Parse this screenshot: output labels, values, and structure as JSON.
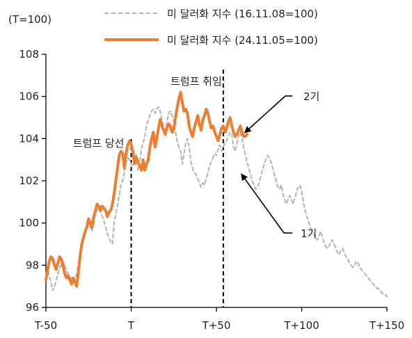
{
  "chart_data": {
    "type": "line",
    "unit_label": "(T=100)",
    "x_ticks": [
      {
        "value": -50,
        "label": "T-50"
      },
      {
        "value": 0,
        "label": "T"
      },
      {
        "value": 50,
        "label": "T+50"
      },
      {
        "value": 100,
        "label": "T+100"
      },
      {
        "value": 150,
        "label": "T+150"
      }
    ],
    "xlim": [
      -50,
      150
    ],
    "ylim": [
      96,
      108
    ],
    "y_ticks": [
      96,
      98,
      100,
      102,
      104,
      106,
      108
    ],
    "grid": false,
    "legend_position": "top-right",
    "series": [
      {
        "name": "미 달러화 지수 (16.11.08=100)",
        "style": "dashed",
        "color": "#b3b3b3",
        "x": [
          -50,
          -49,
          -48,
          -47,
          -46,
          -45,
          -44,
          -43,
          -42,
          -41,
          -40,
          -39,
          -38,
          -37,
          -36,
          -35,
          -34,
          -33,
          -32,
          -31,
          -30,
          -29,
          -28,
          -27,
          -26,
          -25,
          -24,
          -23,
          -22,
          -21,
          -20,
          -19,
          -18,
          -17,
          -16,
          -15,
          -14,
          -13,
          -12,
          -11,
          -10,
          -9,
          -8,
          -7,
          -6,
          -5,
          -4,
          -3,
          -2,
          -1,
          0,
          1,
          2,
          3,
          4,
          5,
          6,
          7,
          8,
          9,
          10,
          11,
          12,
          13,
          14,
          15,
          16,
          17,
          18,
          19,
          20,
          21,
          22,
          23,
          24,
          25,
          26,
          27,
          28,
          29,
          30,
          31,
          32,
          33,
          34,
          35,
          36,
          37,
          38,
          39,
          40,
          41,
          42,
          43,
          44,
          45,
          46,
          47,
          48,
          49,
          50,
          51,
          52,
          53,
          54,
          55,
          56,
          57,
          58,
          59,
          60,
          61,
          62,
          63,
          64,
          65,
          66,
          67,
          68,
          69,
          70,
          71,
          72,
          73,
          74,
          75,
          76,
          77,
          78,
          79,
          80,
          81,
          82,
          83,
          84,
          85,
          86,
          87,
          88,
          89,
          90,
          91,
          92,
          93,
          94,
          95,
          96,
          97,
          98,
          99,
          100,
          101,
          102,
          103,
          104,
          105,
          106,
          107,
          108,
          109,
          110,
          111,
          112,
          113,
          114,
          115,
          116,
          117,
          118,
          119,
          120,
          121,
          122,
          123,
          124,
          125,
          126,
          127,
          128,
          129,
          130,
          131,
          132,
          133,
          134,
          135,
          136,
          137,
          138,
          139,
          140,
          141,
          142,
          143,
          144,
          145,
          146,
          147,
          148,
          149,
          150
        ],
        "values": [
          97.6,
          97.8,
          97.5,
          97.2,
          96.8,
          97.0,
          97.3,
          97.6,
          97.8,
          98.0,
          98.2,
          98.0,
          97.8,
          97.6,
          97.5,
          97.3,
          97.2,
          97.3,
          97.6,
          98.1,
          98.6,
          99.0,
          99.3,
          99.6,
          99.9,
          100.1,
          99.8,
          99.6,
          100.0,
          100.4,
          100.6,
          100.7,
          100.5,
          100.3,
          100.1,
          99.8,
          99.5,
          99.3,
          99.1,
          99.0,
          100.0,
          100.4,
          100.8,
          101.3,
          101.8,
          102.0,
          102.4,
          102.9,
          103.1,
          103.0,
          102.8,
          102.7,
          103.0,
          103.3,
          102.5,
          102.9,
          103.5,
          103.8,
          104.1,
          104.6,
          104.9,
          105.1,
          105.3,
          105.4,
          105.2,
          105.4,
          105.5,
          105.3,
          104.9,
          104.6,
          104.4,
          104.8,
          105.2,
          105.3,
          105.1,
          104.8,
          104.3,
          103.9,
          103.6,
          103.4,
          102.8,
          103.3,
          103.8,
          104.0,
          103.6,
          102.9,
          102.6,
          102.4,
          102.3,
          102.1,
          101.9,
          101.7,
          101.9,
          101.8,
          102.1,
          102.4,
          102.7,
          102.9,
          103.1,
          103.3,
          103.2,
          103.5,
          103.7,
          103.4,
          103.6,
          103.8,
          103.9,
          104.1,
          104.3,
          104.2,
          103.6,
          103.4,
          103.8,
          104.1,
          104.3,
          104.0,
          103.6,
          103.2,
          102.9,
          102.6,
          102.3,
          102.0,
          101.8,
          101.6,
          101.7,
          101.9,
          102.2,
          102.5,
          102.8,
          103.0,
          103.2,
          103.1,
          102.9,
          102.6,
          102.3,
          102.0,
          101.7,
          101.6,
          101.8,
          101.4,
          101.1,
          100.9,
          101.1,
          101.3,
          101.1,
          100.9,
          101.2,
          101.5,
          101.7,
          101.8,
          101.5,
          101.0,
          100.6,
          100.3,
          100.1,
          99.8,
          99.6,
          99.5,
          99.3,
          99.2,
          99.3,
          99.6,
          99.4,
          99.1,
          98.9,
          98.8,
          98.9,
          99.1,
          99.2,
          99.0,
          98.8,
          98.6,
          98.5,
          98.7,
          98.8,
          98.6,
          98.4,
          98.3,
          98.1,
          98.0,
          97.9,
          98.0,
          98.2,
          98.1,
          97.9,
          97.8,
          97.7,
          97.6,
          97.5,
          97.4,
          97.3,
          97.2,
          97.1,
          97.0,
          96.9,
          96.9,
          96.8,
          96.7,
          96.6,
          96.6,
          96.5
        ]
      },
      {
        "name": "미 달러화 지수 (24.11.05=100)",
        "style": "solid",
        "color": "#ed7d31",
        "x": [
          -50,
          -49,
          -48,
          -47,
          -46,
          -45,
          -44,
          -43,
          -42,
          -41,
          -40,
          -39,
          -38,
          -37,
          -36,
          -35,
          -34,
          -33,
          -32,
          -31,
          -30,
          -29,
          -28,
          -27,
          -26,
          -25,
          -24,
          -23,
          -22,
          -21,
          -20,
          -19,
          -18,
          -17,
          -16,
          -15,
          -14,
          -13,
          -12,
          -11,
          -10,
          -9,
          -8,
          -7,
          -6,
          -5,
          -4,
          -3,
          -2,
          -1,
          0,
          1,
          2,
          3,
          4,
          5,
          6,
          7,
          8,
          9,
          10,
          11,
          12,
          13,
          14,
          15,
          16,
          17,
          18,
          19,
          20,
          21,
          22,
          23,
          24,
          25,
          26,
          27,
          28,
          29,
          30,
          31,
          32,
          33,
          34,
          35,
          36,
          37,
          38,
          39,
          40,
          41,
          42,
          43,
          44,
          45,
          46,
          47,
          48,
          49,
          50,
          51,
          52,
          53,
          54,
          55,
          56,
          57,
          58,
          59,
          60,
          61,
          62,
          63,
          64,
          65,
          66,
          67,
          68
        ],
        "values": [
          97.3,
          97.8,
          98.2,
          98.4,
          98.3,
          98.0,
          97.8,
          98.1,
          98.4,
          98.3,
          98.0,
          97.6,
          97.4,
          97.5,
          97.3,
          97.1,
          97.4,
          97.2,
          97.0,
          97.6,
          98.4,
          99.0,
          99.3,
          99.6,
          99.8,
          100.2,
          100.0,
          99.8,
          100.3,
          100.6,
          100.9,
          100.8,
          100.6,
          100.8,
          100.7,
          100.6,
          100.3,
          100.5,
          100.6,
          100.9,
          101.4,
          102.0,
          102.6,
          103.2,
          103.4,
          103.3,
          102.6,
          103.3,
          103.7,
          103.9,
          103.7,
          103.4,
          102.8,
          103.1,
          102.9,
          102.7,
          102.5,
          103.0,
          102.5,
          102.8,
          103.0,
          103.6,
          104.0,
          104.3,
          103.6,
          104.0,
          104.5,
          104.9,
          104.6,
          104.4,
          104.2,
          104.5,
          104.7,
          104.6,
          104.3,
          104.5,
          105.0,
          105.5,
          105.9,
          106.2,
          105.7,
          105.3,
          105.4,
          105.2,
          104.6,
          104.3,
          104.1,
          104.5,
          104.8,
          105.1,
          104.7,
          104.4,
          104.9,
          105.1,
          105.4,
          105.2,
          104.8,
          104.5,
          104.6,
          104.3,
          104.1,
          103.9,
          104.2,
          104.5,
          104.6,
          104.3,
          104.5,
          104.8,
          105.0,
          104.6,
          104.3,
          104.1,
          104.2,
          104.4,
          104.6,
          104.3,
          104.1,
          104.1,
          104.2
        ]
      }
    ],
    "annotations": [
      {
        "label": "트럼프 당선",
        "x": 0
      },
      {
        "label": "트럼프 취임",
        "x": 54
      }
    ],
    "callouts": [
      {
        "label": "2기",
        "target_x": 66,
        "target_y": 104.3
      },
      {
        "label": "1기",
        "target_x": 64,
        "target_y": 102.3
      }
    ]
  }
}
